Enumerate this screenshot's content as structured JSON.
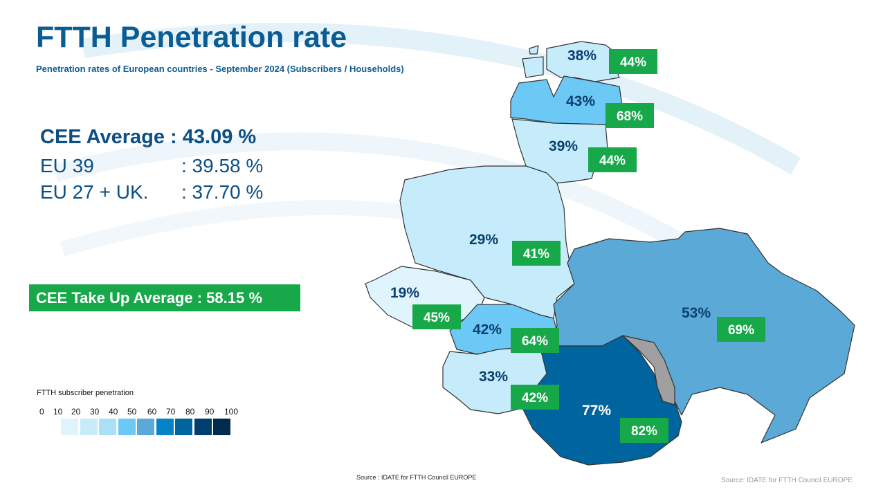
{
  "title": "FTTH Penetration rate",
  "subtitle": "Penetration rates of European countries - September 2024 (Subscribers / Households)",
  "averages": {
    "cee": "CEE Average : 43.09 %",
    "eu39_label": "EU 39",
    "eu39_value": ": 39.58 %",
    "eu27_label": "EU 27 + UK.",
    "eu27_value": ": 37.70 %"
  },
  "takeup": "CEE Take Up Average : 58.15 %",
  "legend": {
    "title": "FTTH subscriber penetration",
    "ticks": [
      "0",
      "10",
      "20",
      "30",
      "40",
      "50",
      "60",
      "70",
      "80",
      "90",
      "100"
    ],
    "colors": [
      "#dff4fd",
      "#c6ecfb",
      "#a8e0f8",
      "#6cc8f5",
      "#5aa9d6",
      "#0582c8",
      "#00649f",
      "#003e6d",
      "#002b4d"
    ]
  },
  "countries": [
    {
      "id": "estonia",
      "penetration": "38%",
      "takeup": "44%",
      "color": "#c6ecfb"
    },
    {
      "id": "latvia",
      "penetration": "43%",
      "takeup": "68%",
      "color": "#6cc8f5"
    },
    {
      "id": "lithuania",
      "penetration": "39%",
      "takeup": "44%",
      "color": "#c6ecfb"
    },
    {
      "id": "poland",
      "penetration": "29%",
      "takeup": "41%",
      "color": "#c6ecfb"
    },
    {
      "id": "czechia",
      "penetration": "19%",
      "takeup": "45%",
      "color": "#dff4fd"
    },
    {
      "id": "slovakia",
      "penetration": "42%",
      "takeup": "64%",
      "color": "#6cc8f5"
    },
    {
      "id": "hungary",
      "penetration": "33%",
      "takeup": "42%",
      "color": "#c6ecfb"
    },
    {
      "id": "ukraine",
      "penetration": "53%",
      "takeup": "69%",
      "color": "#5aa9d6"
    },
    {
      "id": "romania",
      "penetration": "77%",
      "takeup": "82%",
      "color": "#00649f"
    },
    {
      "id": "moldova",
      "color": "#a0a0a0"
    }
  ],
  "source_center": "Source : IDATE for FTTH Council EUROPE",
  "source_right": "Source: IDATE for FTTH Council EUROPE"
}
